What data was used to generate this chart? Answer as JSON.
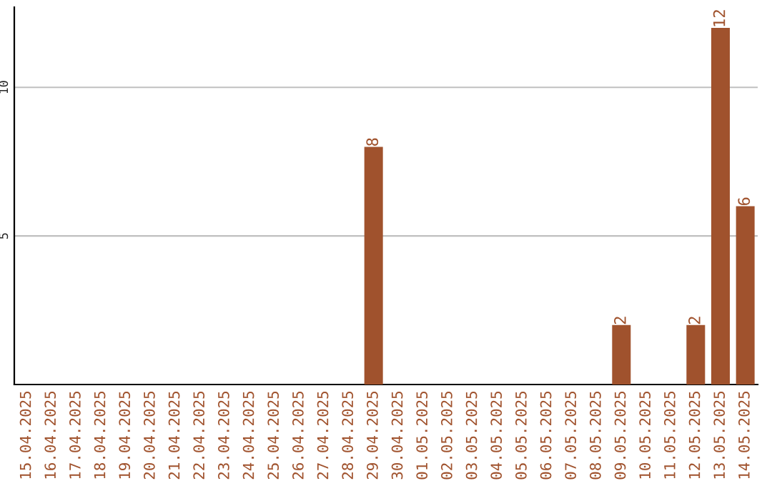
{
  "chart_data": {
    "type": "bar",
    "categories": [
      "15.04.2025",
      "16.04.2025",
      "17.04.2025",
      "18.04.2025",
      "19.04.2025",
      "20.04.2025",
      "21.04.2025",
      "22.04.2025",
      "23.04.2025",
      "24.04.2025",
      "25.04.2025",
      "26.04.2025",
      "27.04.2025",
      "28.04.2025",
      "29.04.2025",
      "30.04.2025",
      "01.05.2025",
      "02.05.2025",
      "03.05.2025",
      "04.05.2025",
      "05.05.2025",
      "06.05.2025",
      "07.05.2025",
      "08.05.2025",
      "09.05.2025",
      "10.05.2025",
      "11.05.2025",
      "12.05.2025",
      "13.05.2025",
      "14.05.2025"
    ],
    "values": [
      0,
      0,
      0,
      0,
      0,
      0,
      0,
      0,
      0,
      0,
      0,
      0,
      0,
      0,
      8,
      0,
      0,
      0,
      0,
      0,
      0,
      0,
      0,
      0,
      2,
      0,
      0,
      2,
      12,
      6
    ],
    "value_labels": [
      null,
      null,
      null,
      null,
      null,
      null,
      null,
      null,
      null,
      null,
      null,
      null,
      null,
      null,
      "8",
      null,
      null,
      null,
      null,
      null,
      null,
      null,
      null,
      null,
      "2",
      null,
      null,
      "2",
      "12",
      "6"
    ],
    "color": "#a0522d",
    "ylim": [
      0,
      12.7
    ],
    "yticks": [
      5,
      10
    ],
    "grid": "y"
  }
}
